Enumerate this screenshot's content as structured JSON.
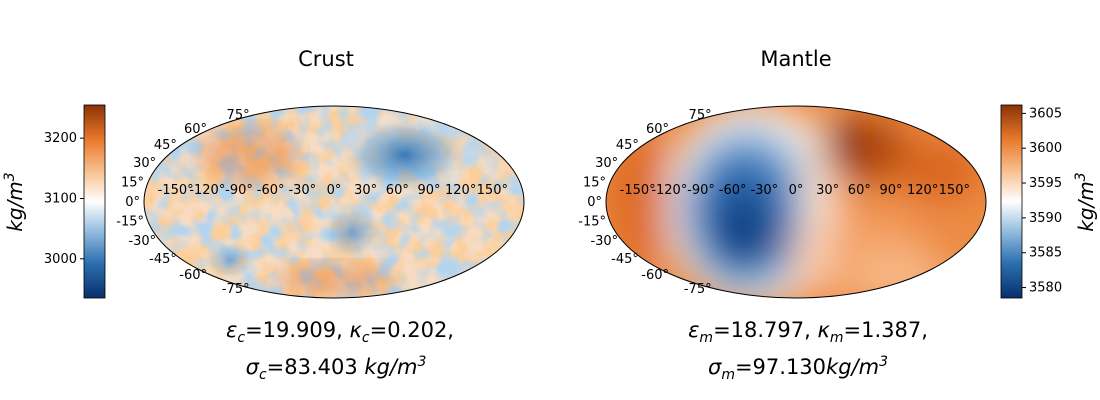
{
  "chart_data": [
    {
      "type": "heatmap",
      "projection": "mollweide",
      "title": "Crust",
      "colormap": "blue-white-orange (diverging)",
      "colorbar": {
        "position": "left",
        "label_base": "kg/m",
        "label_exp": "3",
        "ticks": [
          3000,
          3100,
          3200
        ],
        "range": [
          2935,
          3255
        ]
      },
      "lon_ticks": [
        "-150°",
        "-120°",
        "-90°",
        "-60°",
        "-30°",
        "0°",
        "30°",
        "60°",
        "90°",
        "120°",
        "150°"
      ],
      "lat_ticks": [
        "75°",
        "60°",
        "45°",
        "30°",
        "15°",
        "0°",
        "-15°",
        "-30°",
        "-45°",
        "-60°",
        "-75°"
      ],
      "lon_values": [
        -150,
        -120,
        -90,
        -60,
        -30,
        0,
        30,
        60,
        90,
        120,
        150
      ],
      "lat_values": [
        75,
        60,
        45,
        30,
        15,
        0,
        -15,
        -30,
        -45,
        -60,
        -75
      ],
      "annotation": {
        "line1": {
          "sym": "ε",
          "sub": "c",
          "eq1": "=19.909, ",
          "sym2": "κ",
          "sub2": "c",
          "eq2": "=0.202,"
        },
        "line2": {
          "sym": "σ",
          "sub": "c",
          "eq": "=83.403 ",
          "unit": "kg/m",
          "exp": "3"
        }
      }
    },
    {
      "type": "heatmap",
      "projection": "mollweide",
      "title": "Mantle",
      "colormap": "blue-white-orange (diverging)",
      "colorbar": {
        "position": "right",
        "label_base": "kg/m",
        "label_exp": "3",
        "ticks": [
          3580,
          3585,
          3590,
          3595,
          3600,
          3605
        ],
        "range": [
          3578.5,
          3606.2
        ]
      },
      "lon_ticks": [
        "-150°",
        "-120°",
        "-90°",
        "-60°",
        "-30°",
        "0°",
        "30°",
        "60°",
        "90°",
        "120°",
        "150°"
      ],
      "lat_ticks": [
        "75°",
        "60°",
        "45°",
        "30°",
        "15°",
        "0°",
        "-15°",
        "-30°",
        "-45°",
        "-60°",
        "-75°"
      ],
      "lon_values": [
        -150,
        -120,
        -90,
        -60,
        -30,
        0,
        30,
        60,
        90,
        120,
        150
      ],
      "lat_values": [
        75,
        60,
        45,
        30,
        15,
        0,
        -15,
        -30,
        -45,
        -60,
        -75
      ],
      "annotation": {
        "line1": {
          "sym": "ε",
          "sub": "m",
          "eq1": "=18.797, ",
          "sym2": "κ",
          "sub2": "m",
          "eq2": "=1.387,"
        },
        "line2": {
          "sym": "σ",
          "sub": "m",
          "eq": "=97.130",
          "unit": "kg/m",
          "exp": "3"
        }
      }
    }
  ]
}
